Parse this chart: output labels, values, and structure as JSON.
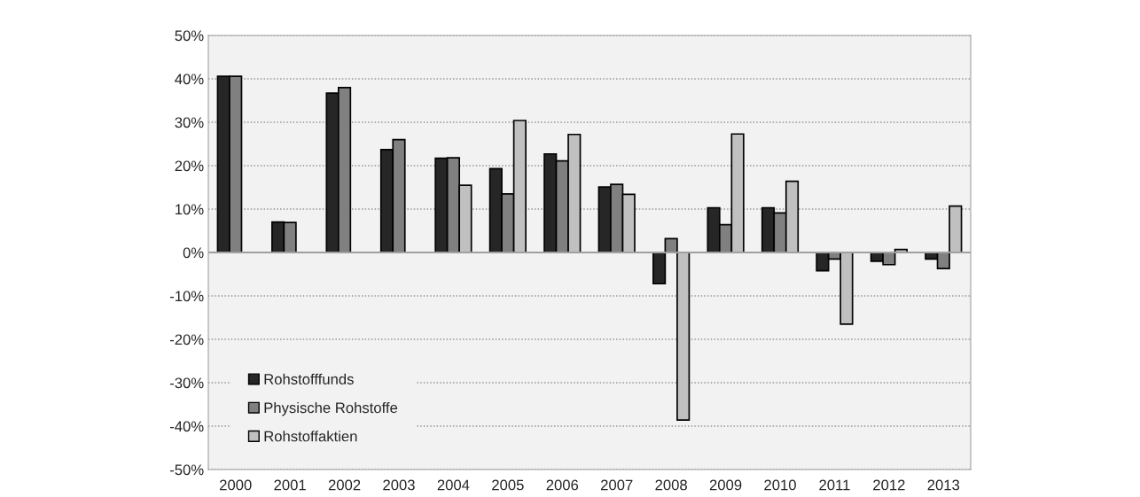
{
  "chart_data": {
    "type": "bar",
    "categories": [
      "2000",
      "2001",
      "2002",
      "2003",
      "2004",
      "2005",
      "2006",
      "2007",
      "2008",
      "2009",
      "2010",
      "2011",
      "2012",
      "2013"
    ],
    "series": [
      {
        "name": "Rohstofffunds",
        "color": "#262626",
        "values": [
          40.6,
          7.0,
          36.7,
          23.7,
          21.7,
          19.3,
          22.7,
          15.1,
          -7.2,
          10.3,
          10.3,
          -4.2,
          -2.0,
          -1.5
        ]
      },
      {
        "name": "Physische Rohstoffe",
        "color": "#808080",
        "values": [
          40.6,
          6.9,
          38.0,
          26.0,
          21.8,
          13.5,
          21.1,
          15.7,
          3.2,
          6.4,
          9.1,
          -1.5,
          -2.8,
          -3.7
        ]
      },
      {
        "name": "Rohstoffaktien",
        "color": "#c0c0c0",
        "values": [
          null,
          null,
          null,
          null,
          15.5,
          30.4,
          27.2,
          13.4,
          -38.6,
          27.3,
          16.4,
          -16.5,
          0.7,
          10.7
        ]
      }
    ],
    "ylim": [
      -50,
      50
    ],
    "yticks": [
      {
        "value": -50,
        "label": "-50%"
      },
      {
        "value": -40,
        "label": "-40%"
      },
      {
        "value": -30,
        "label": "-30%"
      },
      {
        "value": -20,
        "label": "-20%"
      },
      {
        "value": -10,
        "label": "-10%"
      },
      {
        "value": 0,
        "label": "0%"
      },
      {
        "value": 10,
        "label": "10%"
      },
      {
        "value": 20,
        "label": "20%"
      },
      {
        "value": 30,
        "label": "30%"
      },
      {
        "value": 40,
        "label": "40%"
      },
      {
        "value": 50,
        "label": "50%"
      }
    ],
    "grid": "y",
    "legend": "bottom left"
  }
}
